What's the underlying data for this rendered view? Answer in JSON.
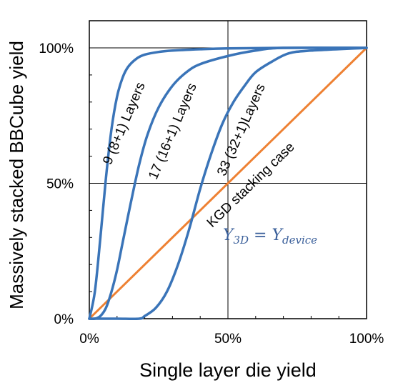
{
  "chart_data": {
    "type": "line",
    "title": "",
    "xlabel": "Single layer die yield",
    "ylabel": "Massively stacked BBCube yield",
    "xlim": [
      0,
      1
    ],
    "ylim": [
      0,
      1
    ],
    "x_ticks": [
      "0%",
      "50%",
      "100%"
    ],
    "y_ticks": [
      "0%",
      "50%",
      "100%"
    ],
    "grid": "center lines at 50%",
    "colors": {
      "curves": "#3a74b8",
      "kgd": "#ee8133",
      "math": "#3a5f9a"
    },
    "series": [
      {
        "name": "9 (8+1) Layers",
        "label_text": "9 (8+1) Layers",
        "color": "#3a74b8",
        "x": [
          0,
          0.02,
          0.04,
          0.06,
          0.08,
          0.1,
          0.12,
          0.14,
          0.17,
          0.2,
          0.25,
          0.3,
          0.4,
          0.5,
          0.7,
          1.0
        ],
        "y": [
          0,
          0.1,
          0.3,
          0.52,
          0.7,
          0.82,
          0.89,
          0.93,
          0.96,
          0.975,
          0.985,
          0.99,
          0.995,
          0.998,
          1.0,
          1.0
        ]
      },
      {
        "name": "17 (16+1) Layers",
        "label_text": "17 (16+1) Layers",
        "color": "#3a74b8",
        "x": [
          0,
          0.02,
          0.04,
          0.06,
          0.08,
          0.1,
          0.12,
          0.15,
          0.18,
          0.21,
          0.25,
          0.3,
          0.35,
          0.4,
          0.5,
          0.6,
          0.7,
          1.0
        ],
        "y": [
          0,
          0.0,
          0.01,
          0.04,
          0.1,
          0.18,
          0.28,
          0.43,
          0.57,
          0.68,
          0.78,
          0.86,
          0.91,
          0.94,
          0.97,
          0.99,
          1.0,
          1.0
        ]
      },
      {
        "name": "33 (32+1)Layers",
        "label_text": "33 (32+1)Layers",
        "color": "#3a74b8",
        "x": [
          0,
          0.1,
          0.18,
          0.2,
          0.24,
          0.28,
          0.32,
          0.36,
          0.4,
          0.44,
          0.48,
          0.52,
          0.56,
          0.6,
          0.66,
          0.72,
          0.8,
          1.0
        ],
        "y": [
          0,
          0.0,
          0.0,
          0.01,
          0.04,
          0.1,
          0.2,
          0.33,
          0.48,
          0.61,
          0.72,
          0.8,
          0.86,
          0.91,
          0.95,
          0.98,
          0.99,
          1.0
        ]
      },
      {
        "name": "KGD stacking case",
        "label_text": "KGD stacking case",
        "color": "#ee8133",
        "x": [
          0,
          1
        ],
        "y": [
          0,
          1
        ]
      }
    ],
    "annotations": {
      "math_main": "Y",
      "math_sub1": "3D",
      "math_eq": " = Y",
      "math_sub2": "device"
    }
  }
}
